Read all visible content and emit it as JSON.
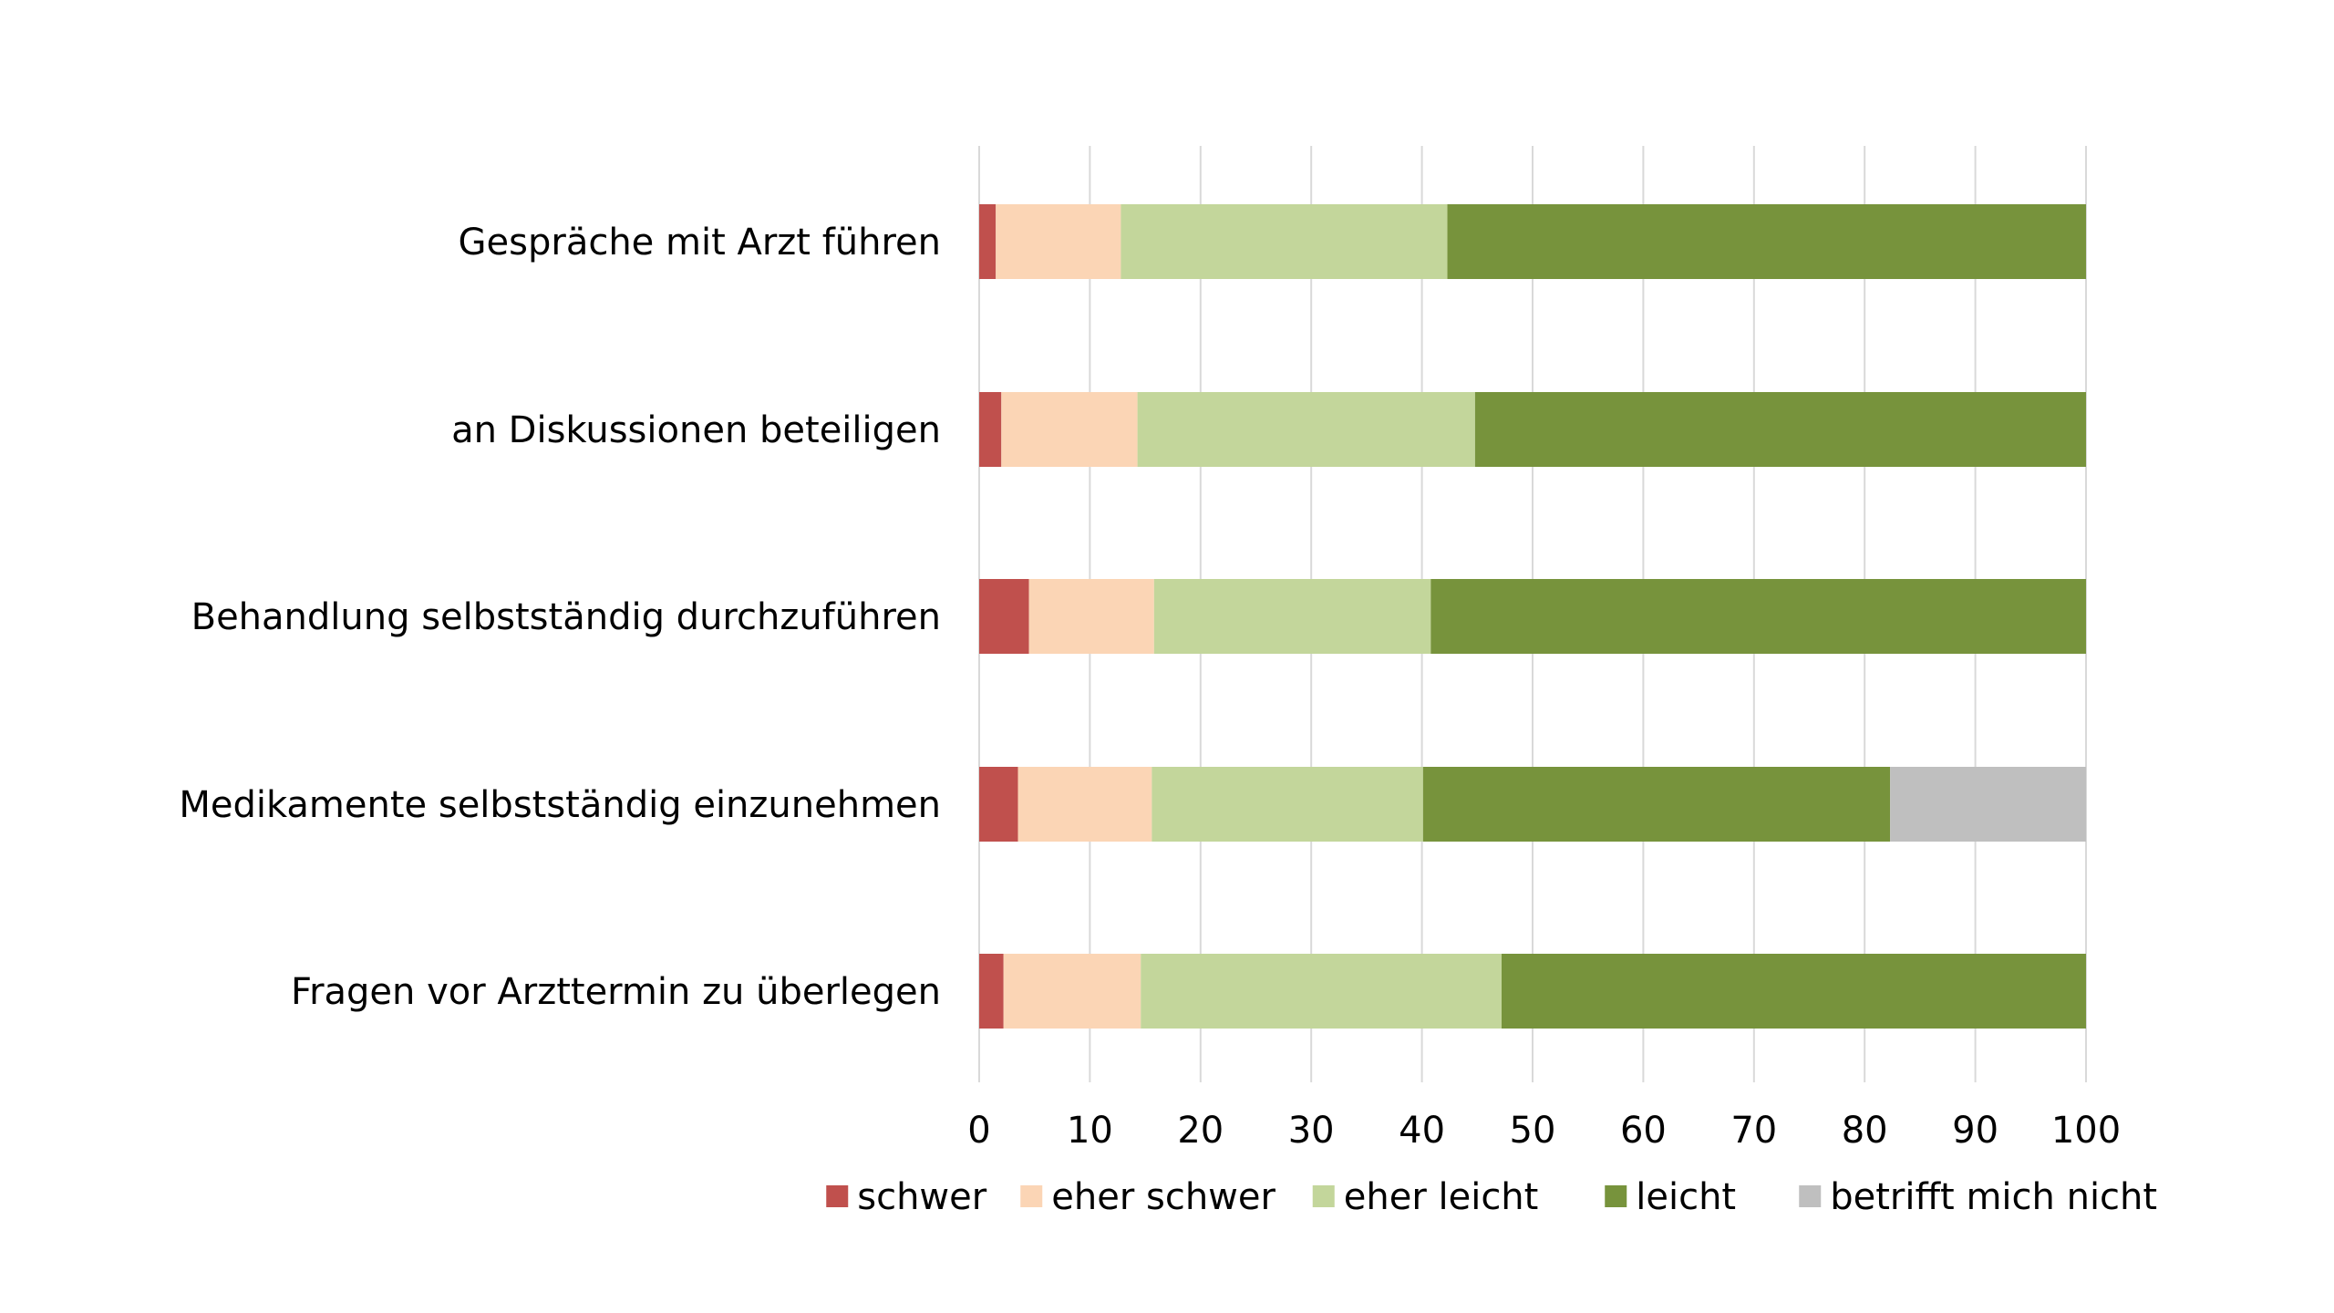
{
  "chart_data": {
    "type": "bar",
    "orientation": "horizontal",
    "stacked": true,
    "title": "",
    "xlabel": "",
    "ylabel": "",
    "xlim": [
      0,
      100
    ],
    "x_ticks": [
      0,
      10,
      20,
      30,
      40,
      50,
      60,
      70,
      80,
      90,
      100
    ],
    "grid": true,
    "legend_position": "bottom",
    "categories": [
      "Gespräche mit Arzt führen",
      "an Diskussionen beteiligen",
      "Behandlung selbstständig durchzuführen",
      "Medikamente selbstständig einzunehmen",
      "Fragen vor Arzttermin zu überlegen"
    ],
    "series": [
      {
        "name": "schwer",
        "color": "#c0504d",
        "values": [
          1.5,
          2.0,
          4.5,
          3.5,
          2.2
        ]
      },
      {
        "name": "eher schwer",
        "color": "#fbd5b5",
        "values": [
          11.3,
          12.3,
          11.3,
          12.1,
          12.4
        ]
      },
      {
        "name": "eher leicht",
        "color": "#c3d69b",
        "values": [
          29.5,
          30.5,
          25.0,
          24.5,
          32.6
        ]
      },
      {
        "name": "leicht",
        "color": "#77933c",
        "values": [
          57.7,
          55.2,
          59.2,
          42.2,
          52.8
        ]
      },
      {
        "name": "betrifft mich nicht",
        "color": "#bfbfbf",
        "values": [
          0,
          0,
          0,
          17.7,
          0
        ]
      }
    ]
  }
}
